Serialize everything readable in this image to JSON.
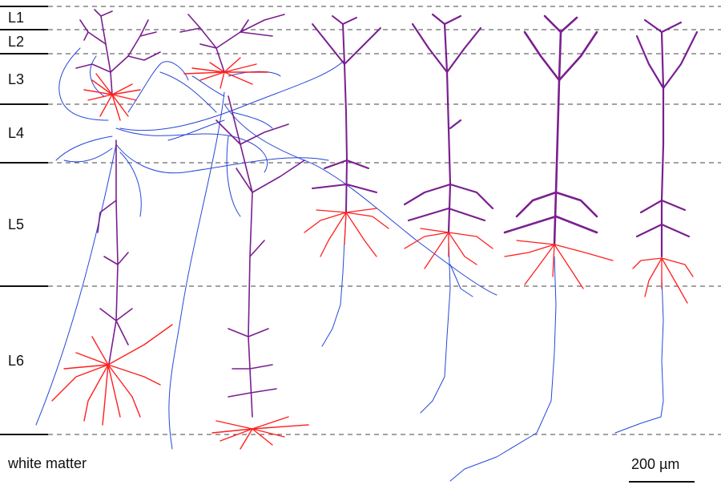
{
  "layers": [
    {
      "label": "L1",
      "top": 0.0,
      "bottom": 0.0505
    },
    {
      "label": "L2",
      "top": 0.0505,
      "bottom": 0.1047
    },
    {
      "label": "L3",
      "top": 0.1047,
      "bottom": 0.2161
    },
    {
      "label": "L4",
      "top": 0.2161,
      "bottom": 0.3474
    },
    {
      "label": "L5",
      "top": 0.3474,
      "bottom": 0.6287
    },
    {
      "label": "L6",
      "top": 0.6287,
      "bottom": 0.9657
    },
    {
      "label": "white matter",
      "top": 0.9657,
      "bottom": 1.0
    }
  ],
  "scale_bar": {
    "label": "200 µm"
  },
  "colors": {
    "axon": "#2747d6",
    "apical_dendrite": "#7a1f8f",
    "basal_dendrite": "#ff1f1f",
    "boundary": "#444444",
    "text": "#111111"
  }
}
